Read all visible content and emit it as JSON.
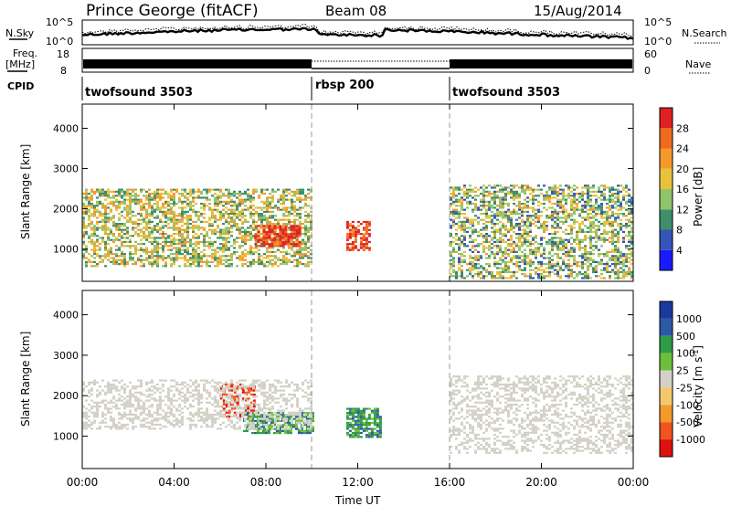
{
  "header": {
    "station": "Prince George (fitACF)",
    "beam": "Beam 08",
    "date": "15/Aug/2014"
  },
  "nsky_panel": {
    "left_label": "N.Sky",
    "right_label": "N.Search",
    "left_ticks": [
      "10^5",
      "10^0"
    ],
    "right_ticks": [
      "10^5",
      "10^0"
    ]
  },
  "freq_panel": {
    "left_label": "Freq.",
    "left_unit": "[MHz]",
    "left_ticks": [
      "18",
      "8"
    ],
    "right_label": "Nave",
    "right_ticks": [
      "60",
      "0"
    ]
  },
  "cpid_panel": {
    "label": "CPID",
    "segments": [
      {
        "name": "twofsound 3503",
        "start": "00:00",
        "end": "10:00"
      },
      {
        "name": "rbsp 200",
        "start": "10:00",
        "end": "16:00"
      },
      {
        "name": "twofsound 3503",
        "start": "16:00",
        "end": "24:00"
      }
    ]
  },
  "x_axis": {
    "title": "Time UT",
    "ticks": [
      "00:00",
      "04:00",
      "08:00",
      "12:00",
      "16:00",
      "20:00",
      "00:00"
    ]
  },
  "colors": {
    "power": [
      "#1a1aff",
      "#3355bb",
      "#3e8f6a",
      "#8fc46a",
      "#e8c23a",
      "#f59a2a",
      "#f06a1e",
      "#e02020"
    ],
    "velocity": [
      "#e01010",
      "#f0551e",
      "#f29a2a",
      "#f5c86a",
      "#d3d1c6",
      "#6dbf3a",
      "#2f9b44",
      "#2a5aa6",
      "#1a3aa0"
    ]
  },
  "chart_data": [
    {
      "type": "heatmap",
      "title": "Power",
      "xlabel": "",
      "ylabel": "Slant Range [km]",
      "xlim": [
        "00:00",
        "24:00"
      ],
      "ylim": [
        200,
        4600
      ],
      "y_ticks": [
        "1000",
        "2000",
        "3000",
        "4000"
      ],
      "colorbar": {
        "label": "Power [dB]",
        "ticks": [
          "4",
          "8",
          "12",
          "16",
          "20",
          "24",
          "28"
        ],
        "range": [
          0,
          32
        ]
      },
      "features": [
        {
          "time_start": "00:00",
          "time_end": "10:00",
          "range_start": 600,
          "range_end": 2500,
          "level": 16
        },
        {
          "time_start": "07:30",
          "time_end": "09:30",
          "range_start": 1100,
          "range_end": 1600,
          "level": 30
        },
        {
          "time_start": "11:30",
          "time_end": "12:30",
          "range_start": 1000,
          "range_end": 1700,
          "level": 30
        },
        {
          "time_start": "16:00",
          "time_end": "24:00",
          "range_start": 300,
          "range_end": 2600,
          "level": 14
        }
      ]
    },
    {
      "type": "heatmap",
      "title": "Velocity",
      "xlabel": "Time UT",
      "ylabel": "Slant Range [km]",
      "xlim": [
        "00:00",
        "24:00"
      ],
      "ylim": [
        200,
        4600
      ],
      "y_ticks": [
        "1000",
        "2000",
        "3000",
        "4000"
      ],
      "colorbar": {
        "label": "Velocity [m s^-1]",
        "ticks": [
          "1000",
          "500",
          "100",
          "25",
          "-25",
          "-100",
          "-500",
          "-1000"
        ]
      },
      "features": [
        {
          "time_start": "06:00",
          "time_end": "07:30",
          "range_start": 1500,
          "range_end": 2300,
          "velocity": -500
        },
        {
          "time_start": "07:00",
          "time_end": "10:00",
          "range_start": 1100,
          "range_end": 1600,
          "velocity": 100
        },
        {
          "time_start": "11:30",
          "time_end": "13:00",
          "range_start": 1000,
          "range_end": 1700,
          "velocity": 100
        }
      ]
    }
  ]
}
